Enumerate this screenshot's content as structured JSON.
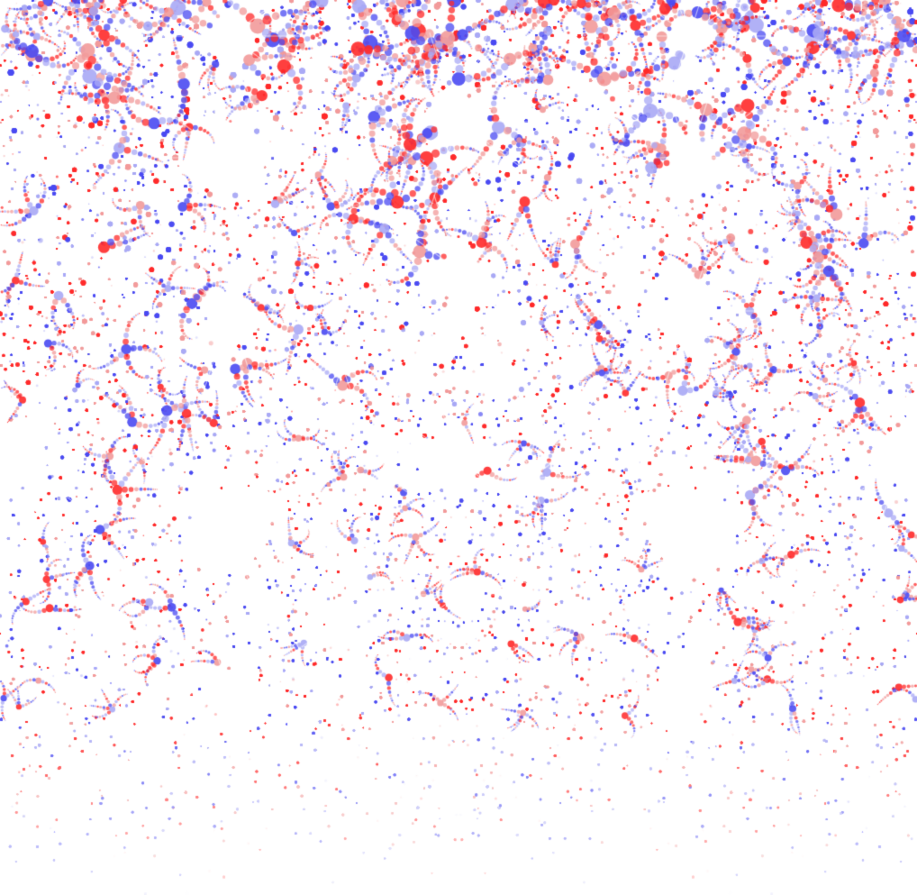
{
  "image": {
    "background_color": "#ffffff",
    "palette": {
      "red": "#ff2a2a",
      "light_red": "#f29a9a",
      "blue": "#4a4af2",
      "light_blue": "#a9a9f5"
    },
    "pattern": "dot-fractal",
    "symmetry": "vertical-mirror",
    "fade": "toward-bottom"
  }
}
